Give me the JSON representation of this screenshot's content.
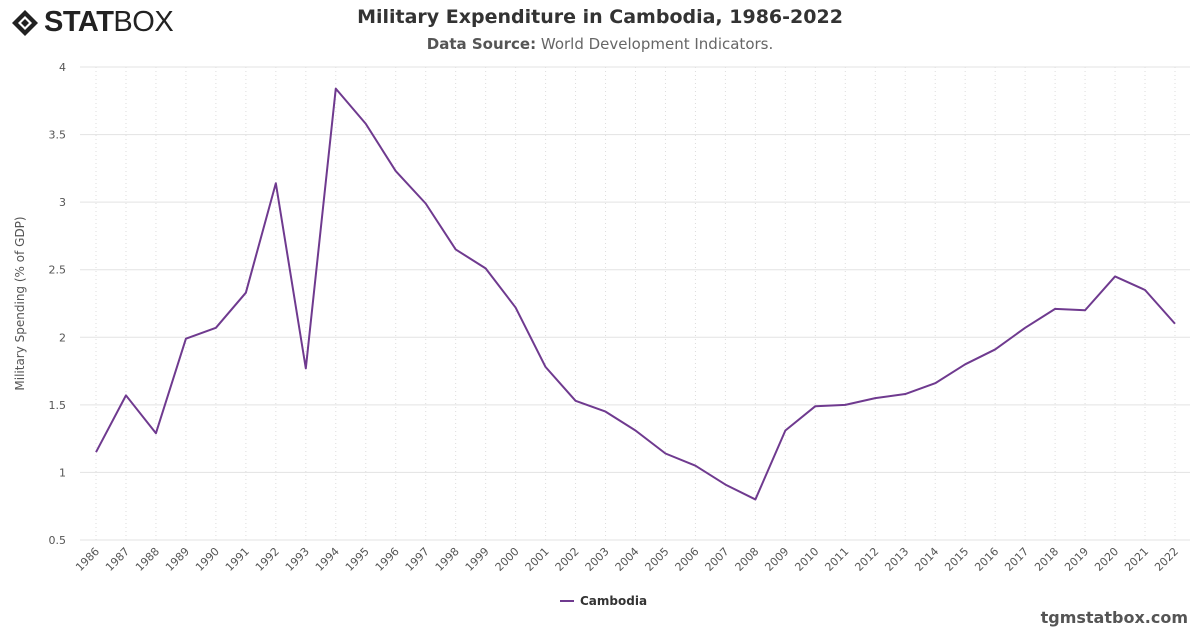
{
  "brand": {
    "logo_text_bold": "STAT",
    "logo_text_light": "BOX",
    "watermark": "tgmstatbox.com"
  },
  "header": {
    "title": "Military Expenditure in Cambodia, 1986-2022",
    "source_label": "Data Source:",
    "source_value": "World Development Indicators."
  },
  "chart_data": {
    "type": "line",
    "title": "Military Expenditure in Cambodia, 1986-2022",
    "xlabel": "",
    "ylabel": "Military Spending (% of GDP)",
    "ylim": [
      0.5,
      4
    ],
    "yticks": [
      "0.5",
      "1",
      "1.5",
      "2",
      "2.5",
      "3",
      "3.5",
      "4"
    ],
    "grid": true,
    "legend": "bottom-center",
    "x": [
      "1986",
      "1987",
      "1988",
      "1989",
      "1990",
      "1991",
      "1992",
      "1993",
      "1994",
      "1995",
      "1996",
      "1997",
      "1998",
      "1999",
      "2000",
      "2001",
      "2002",
      "2003",
      "2004",
      "2005",
      "2006",
      "2007",
      "2008",
      "2009",
      "2010",
      "2011",
      "2012",
      "2013",
      "2014",
      "2015",
      "2016",
      "2017",
      "2018",
      "2019",
      "2020",
      "2021",
      "2022"
    ],
    "series": [
      {
        "name": "Cambodia",
        "color": "#6f3a8f",
        "values": [
          1.15,
          1.57,
          1.29,
          1.99,
          2.07,
          2.33,
          3.14,
          1.77,
          3.84,
          3.58,
          3.23,
          2.99,
          2.65,
          2.51,
          2.22,
          1.78,
          1.53,
          1.45,
          1.31,
          1.14,
          1.05,
          0.91,
          0.8,
          1.31,
          1.49,
          1.5,
          1.55,
          1.58,
          1.66,
          1.8,
          1.91,
          2.07,
          2.21,
          2.2,
          2.45,
          2.35,
          2.1
        ]
      }
    ]
  }
}
